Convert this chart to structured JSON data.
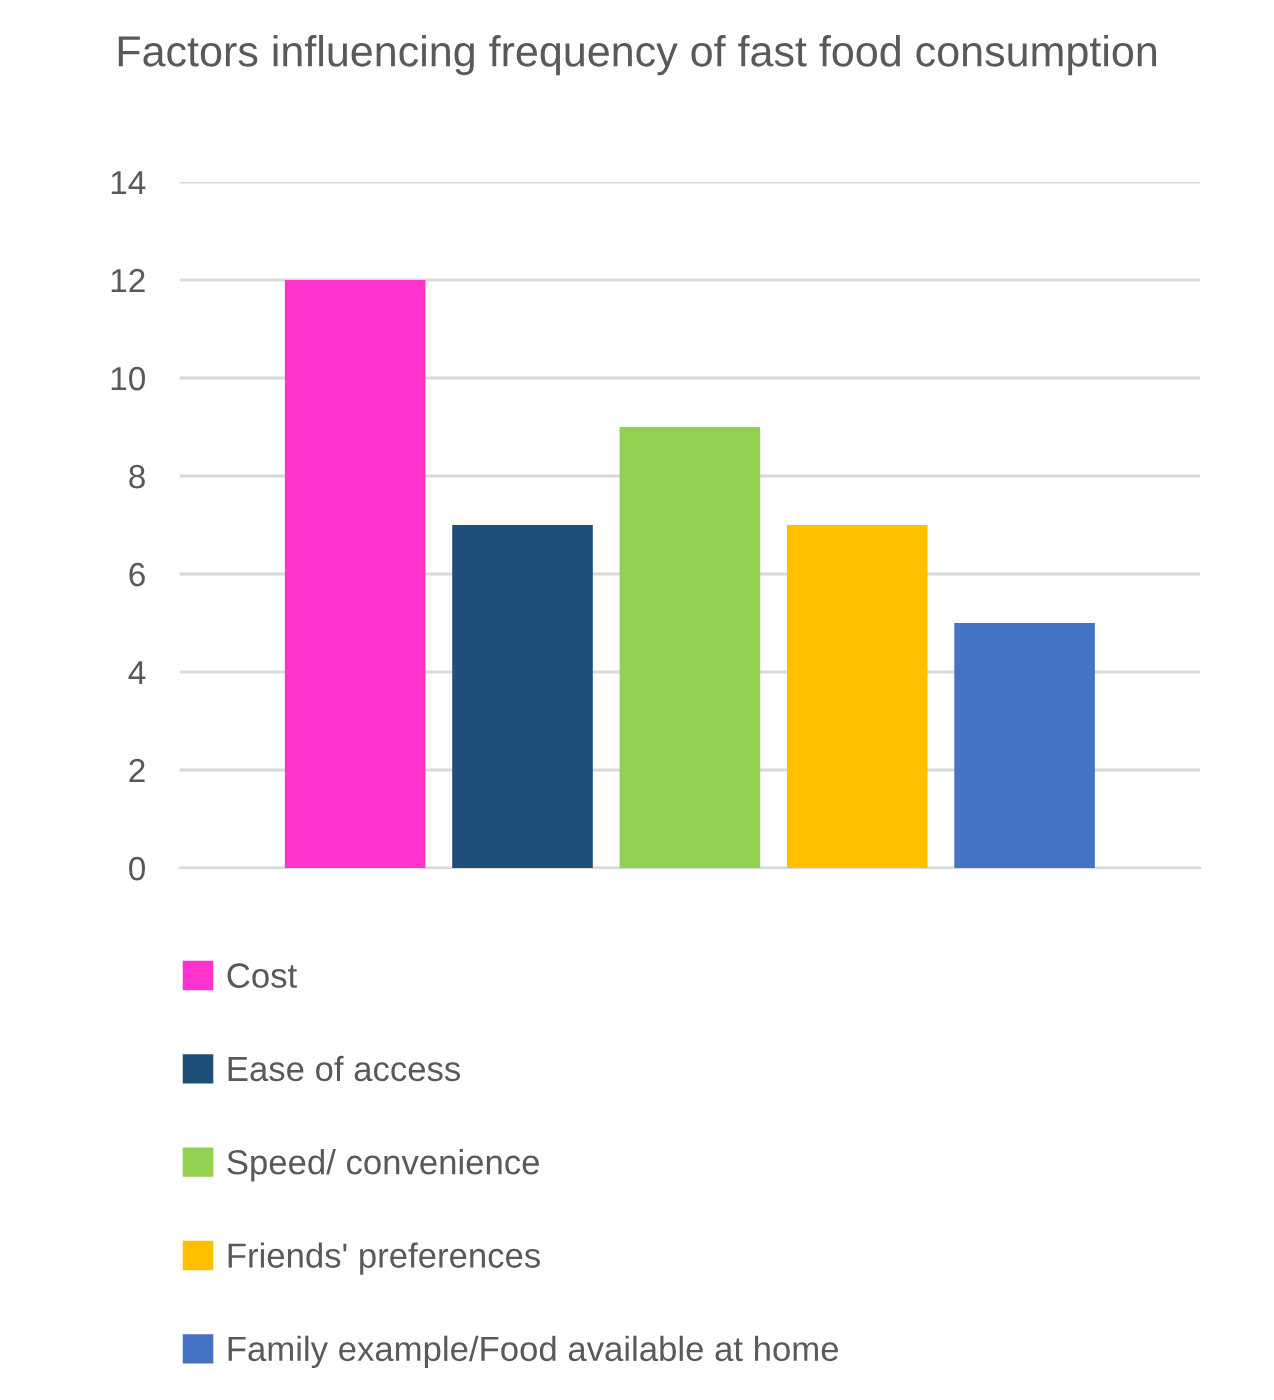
{
  "chart_data": {
    "type": "bar",
    "title": "Factors influencing frequency of fast food consumption",
    "categories": [
      null
    ],
    "series": [
      {
        "name": "Cost",
        "color": "#ff33cc",
        "values": [
          12
        ]
      },
      {
        "name": "Ease of access",
        "color": "#1f4e79",
        "values": [
          7
        ]
      },
      {
        "name": "Speed/ convenience",
        "color": "#92d050",
        "values": [
          9
        ]
      },
      {
        "name": "Friends' preferences",
        "color": "#ffc000",
        "values": [
          7
        ]
      },
      {
        "name": "Family example/Food available at home",
        "color": "#4472c4",
        "values": [
          5
        ]
      }
    ],
    "ylim": [
      0,
      14
    ],
    "yticks": [
      0,
      2,
      4,
      6,
      8,
      10,
      12,
      14
    ],
    "grid": "y",
    "legend": "bottom"
  }
}
